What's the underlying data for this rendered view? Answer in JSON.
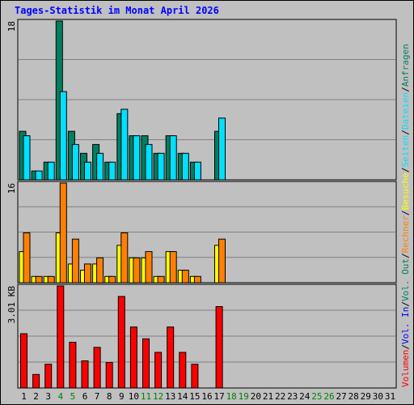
{
  "chart_data": {
    "type": "bar",
    "title": "Tages-Statistik im Monat April 2026",
    "days": [
      "1",
      "2",
      "3",
      "4",
      "5",
      "6",
      "7",
      "8",
      "9",
      "10",
      "11",
      "12",
      "13",
      "14",
      "15",
      "16",
      "17",
      "18",
      "19",
      "20",
      "21",
      "22",
      "23",
      "24",
      "25",
      "26",
      "27",
      "28",
      "29",
      "30",
      "31"
    ],
    "weekend_days": [
      "4",
      "5",
      "11",
      "12",
      "18",
      "19",
      "25",
      "26"
    ],
    "colors": {
      "anfragen": "#008060",
      "dateien": "#00e0ff",
      "seiten": "#00e0ff",
      "besuche": "#ffff00",
      "rechner": "#ff8000",
      "vol_out": "#008060",
      "vol_in": "#0000ff",
      "volumen": "#ff0000",
      "title": "#0000ff",
      "weekend_label": "#008000"
    },
    "panels": [
      {
        "id": "hits",
        "ymax_label": "18",
        "ymax": 18,
        "series": [
          {
            "name": "Anfragen",
            "values": [
              5.5,
              1,
              2,
              18,
              5.5,
              3,
              4,
              2,
              7.5,
              5,
              5,
              3,
              5,
              3,
              2,
              0,
              5.5,
              0,
              0,
              0,
              0,
              0,
              0,
              0,
              0,
              0,
              0,
              0,
              0,
              0,
              0
            ]
          },
          {
            "name": "Dateien",
            "values": [
              5,
              1,
              2,
              10,
              4,
              2,
              3,
              2,
              8,
              5,
              4,
              3,
              5,
              3,
              2,
              0,
              7,
              0,
              0,
              0,
              0,
              0,
              0,
              0,
              0,
              0,
              0,
              0,
              0,
              0,
              0
            ]
          }
        ]
      },
      {
        "id": "visits",
        "ymax_label": "16",
        "ymax": 16,
        "series": [
          {
            "name": "Besuche",
            "values": [
              5,
              1,
              1,
              8,
              3,
              2,
              3,
              1,
              6,
              4,
              4,
              1,
              5,
              2,
              1,
              0,
              6,
              0,
              0,
              0,
              0,
              0,
              0,
              0,
              0,
              0,
              0,
              0,
              0,
              0,
              0
            ]
          },
          {
            "name": "Rechner",
            "values": [
              8,
              1,
              1,
              16,
              7,
              3,
              4,
              1,
              8,
              4,
              5,
              1,
              5,
              2,
              1,
              0,
              7,
              0,
              0,
              0,
              0,
              0,
              0,
              0,
              0,
              0,
              0,
              0,
              0,
              0,
              0
            ]
          }
        ]
      },
      {
        "id": "volume",
        "ymax_label": "3.01 KB",
        "ymax": 3.01,
        "series": [
          {
            "name": "Volumen",
            "values": [
              1.6,
              0.4,
              0.7,
              3.01,
              1.35,
              0.8,
              1.2,
              0.75,
              2.7,
              1.8,
              1.45,
              1.05,
              1.8,
              1.05,
              0.7,
              0,
              2.4,
              0,
              0,
              0,
              0,
              0,
              0,
              0,
              0,
              0,
              0,
              0,
              0,
              0,
              0
            ]
          }
        ]
      }
    ],
    "legend": [
      {
        "label": "Anfragen",
        "key": "anfragen"
      },
      {
        "label": "Dateien",
        "key": "dateien"
      },
      {
        "label": "Seiten",
        "key": "seiten"
      },
      {
        "label": "Besuche",
        "key": "besuche"
      },
      {
        "label": "Rechner",
        "key": "rechner"
      },
      {
        "label": "Vol. Out",
        "key": "vol_out"
      },
      {
        "label": "Vol. In",
        "key": "vol_in"
      },
      {
        "label": "Volumen",
        "key": "volumen"
      }
    ],
    "legend_separator": "/",
    "grid": true
  }
}
